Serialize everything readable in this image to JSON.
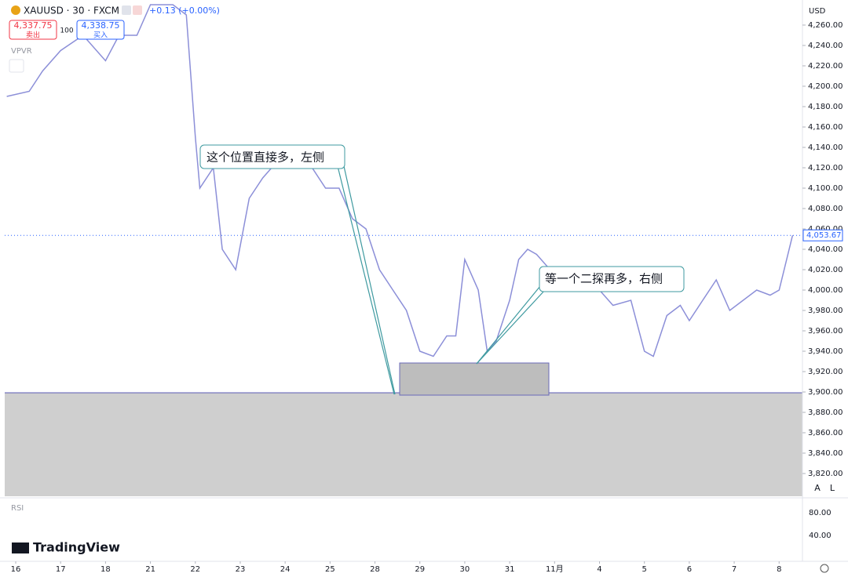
{
  "header": {
    "symbol": "XAUUSD · 30 · FXCM",
    "change": "+0.13 (+0.00%)",
    "sell_price": "4,337.75",
    "sell_label": "卖出",
    "qty": "100",
    "buy_price": "4,338.75",
    "buy_label": "买入",
    "indicator": "VPVR",
    "currency": "USD"
  },
  "rsi": {
    "label": "RSI",
    "ticks": [
      "80.00",
      "40.00"
    ]
  },
  "brand": "TradingView",
  "buttons": [
    "A",
    "L"
  ],
  "annotations": [
    "这个位置直接多，左侧",
    "等一个二探再多，右侧"
  ],
  "chart_data": {
    "type": "line",
    "color": "#8c8fd8",
    "xlim": [
      -0.245,
      17.52
    ],
    "xticks": [
      {
        "value": 0,
        "label": "16"
      },
      {
        "value": 1,
        "label": "17"
      },
      {
        "value": 2,
        "label": "18"
      },
      {
        "value": 3,
        "label": "21"
      },
      {
        "value": 4,
        "label": "22"
      },
      {
        "value": 5,
        "label": "23"
      },
      {
        "value": 6,
        "label": "24"
      },
      {
        "value": 7,
        "label": "25"
      },
      {
        "value": 8,
        "label": "28"
      },
      {
        "value": 9,
        "label": "29"
      },
      {
        "value": 10,
        "label": "30"
      },
      {
        "value": 11,
        "label": "31"
      },
      {
        "value": 12,
        "label": "11月"
      },
      {
        "value": 13,
        "label": "4"
      },
      {
        "value": 14,
        "label": "5"
      },
      {
        "value": 15,
        "label": "6"
      },
      {
        "value": 16,
        "label": "7"
      },
      {
        "value": 17,
        "label": "8"
      }
    ],
    "ylim": [
      3797.7,
      4284.6
    ],
    "yticks": [
      {
        "value": 4260,
        "label": "4,260.00"
      },
      {
        "value": 4240,
        "label": "4,240.00"
      },
      {
        "value": 4220,
        "label": "4,220.00"
      },
      {
        "value": 4200,
        "label": "4,200.00"
      },
      {
        "value": 4180,
        "label": "4,180.00"
      },
      {
        "value": 4160,
        "label": "4,160.00"
      },
      {
        "value": 4140,
        "label": "4,140.00"
      },
      {
        "value": 4120,
        "label": "4,120.00"
      },
      {
        "value": 4100,
        "label": "4,100.00"
      },
      {
        "value": 4080,
        "label": "4,080.00"
      },
      {
        "value": 4060,
        "label": "4,060.00"
      },
      {
        "value": 4040,
        "label": "4,040.00"
      },
      {
        "value": 4020,
        "label": "4,020.00"
      },
      {
        "value": 4000,
        "label": "4,000.00"
      },
      {
        "value": 3980,
        "label": "3,980.00"
      },
      {
        "value": 3960,
        "label": "3,960.00"
      },
      {
        "value": 3940,
        "label": "3,940.00"
      },
      {
        "value": 3920,
        "label": "3,920.00"
      },
      {
        "value": 3900,
        "label": "3,900.00"
      },
      {
        "value": 3880,
        "label": "3,880.00"
      },
      {
        "value": 3860,
        "label": "3,860.00"
      },
      {
        "value": 3840,
        "label": "3,840.00"
      },
      {
        "value": 3820,
        "label": "3,820.00"
      }
    ],
    "last_price": {
      "value": 4053.67,
      "label": "4,053.67"
    },
    "series": [
      {
        "name": "XAUUSD",
        "x": [
          -0.2,
          0.3,
          0.6,
          1.0,
          1.5,
          2.0,
          2.3,
          2.7,
          3.0,
          3.5,
          3.8,
          4.0,
          4.1,
          4.4,
          4.6,
          4.9,
          5.2,
          5.5,
          5.9,
          6.2,
          6.6,
          6.9,
          7.2,
          7.5,
          7.8,
          8.1,
          8.4,
          8.7,
          9.0,
          9.3,
          9.6,
          9.8,
          10.0,
          10.3,
          10.5,
          10.7,
          11.0,
          11.2,
          11.4,
          11.6,
          11.9,
          12.1,
          12.4,
          12.7,
          13.0,
          13.3,
          13.7,
          14.0,
          14.2,
          14.5,
          14.8,
          15.0,
          15.3,
          15.6,
          15.9,
          16.2,
          16.5,
          16.8,
          17.0,
          17.3
        ],
        "values": [
          4190,
          4195,
          4215,
          4235,
          4250,
          4225,
          4250,
          4250,
          4280,
          4280,
          4270,
          4150,
          4100,
          4120,
          4040,
          4020,
          4090,
          4110,
          4130,
          4140,
          4120,
          4100,
          4100,
          4070,
          4060,
          4020,
          4000,
          3980,
          3940,
          3935,
          3955,
          3955,
          4030,
          4000,
          3940,
          3950,
          3990,
          4030,
          4040,
          4035,
          4020,
          4000,
          4015,
          4005,
          4000,
          3985,
          3990,
          3940,
          3935,
          3975,
          3985,
          3970,
          3990,
          4010,
          3980,
          3990,
          4000,
          3995,
          4000,
          4053.67
        ]
      }
    ]
  }
}
